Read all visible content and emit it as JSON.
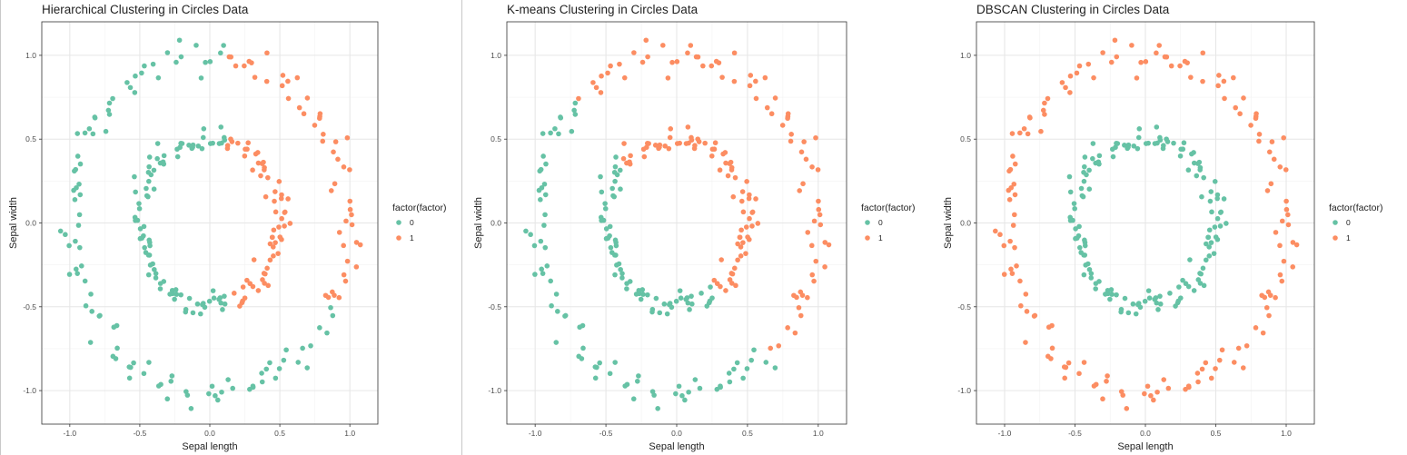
{
  "colors": {
    "cluster_0": "#66C2A5",
    "cluster_1": "#FC8D62"
  },
  "legend": {
    "title": "factor(factor)",
    "labels": [
      "0",
      "1"
    ],
    "placement": "right"
  },
  "chart_data": [
    {
      "type": "scatter",
      "title": "Hierarchical Clustering in Circles Data",
      "xlabel": "Sepal length",
      "ylabel": "Sepal width",
      "xlim": [
        -1.2,
        1.2
      ],
      "ylim": [
        -1.2,
        1.2
      ],
      "xticks": [
        "-1.0",
        "-0.5",
        "0.0",
        "0.5",
        "1.0"
      ],
      "yticks": [
        "-1.0",
        "-0.5",
        "0.0",
        "0.5",
        "1.0"
      ],
      "grid": true,
      "clustering": "hierarchical"
    },
    {
      "type": "scatter",
      "title": "K-means Clustering in Circles Data",
      "xlabel": "Sepal length",
      "ylabel": "Sepal width",
      "xlim": [
        -1.2,
        1.2
      ],
      "ylim": [
        -1.2,
        1.2
      ],
      "xticks": [
        "-1.0",
        "-0.5",
        "0.0",
        "0.5",
        "1.0"
      ],
      "yticks": [
        "-1.0",
        "-0.5",
        "0.0",
        "0.5",
        "1.0"
      ],
      "grid": true,
      "clustering": "kmeans"
    },
    {
      "type": "scatter",
      "title": "DBSCAN Clustering in Circles Data",
      "xlabel": "Sepal length",
      "ylabel": "Sepal width",
      "xlim": [
        -1.2,
        1.2
      ],
      "ylim": [
        -1.2,
        1.2
      ],
      "xticks": [
        "-1.0",
        "-0.5",
        "0.0",
        "0.5",
        "1.0"
      ],
      "yticks": [
        "-1.0",
        "-0.5",
        "0.0",
        "0.5",
        "1.0"
      ],
      "grid": true,
      "clustering": "dbscan"
    }
  ]
}
